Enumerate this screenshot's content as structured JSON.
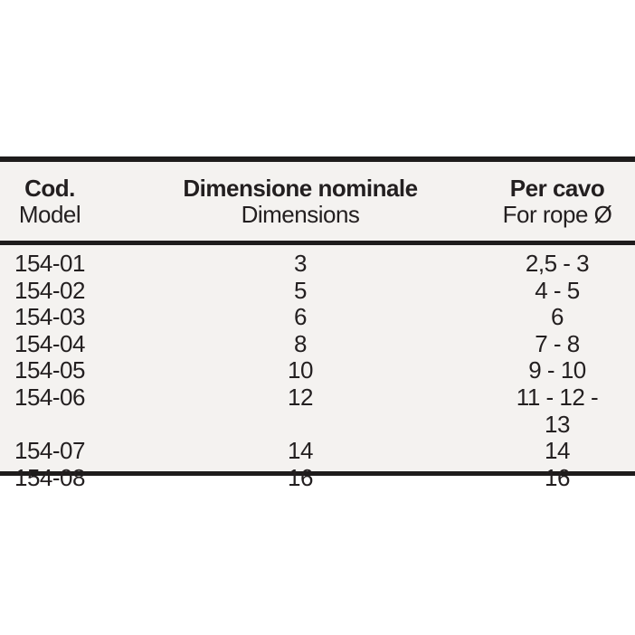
{
  "page": {
    "background": "#ffffff"
  },
  "table": {
    "band_background": "#f4f2f0",
    "rule_color": "#1e1c1c",
    "text_color": "#231f20",
    "header": {
      "col1_title": "Cod.",
      "col1_subtitle": "Model",
      "col2_title": "Dimensione nominale",
      "col2_subtitle": "Dimensions",
      "col3_title": "Per cavo",
      "col3_subtitle": "For rope Ø"
    },
    "rows": [
      {
        "code": "154-01",
        "dimension": "3",
        "rope": "2,5 - 3"
      },
      {
        "code": "154-02",
        "dimension": "5",
        "rope": "4 - 5"
      },
      {
        "code": "154-03",
        "dimension": "6",
        "rope": "6"
      },
      {
        "code": "154-04",
        "dimension": "8",
        "rope": "7 - 8"
      },
      {
        "code": "154-05",
        "dimension": "10",
        "rope": "9 - 10"
      },
      {
        "code": "154-06",
        "dimension": "12",
        "rope": "11 - 12 - 13"
      },
      {
        "code": "154-07",
        "dimension": "14",
        "rope": "14"
      },
      {
        "code": "154-08",
        "dimension": "16",
        "rope": "16"
      }
    ]
  }
}
